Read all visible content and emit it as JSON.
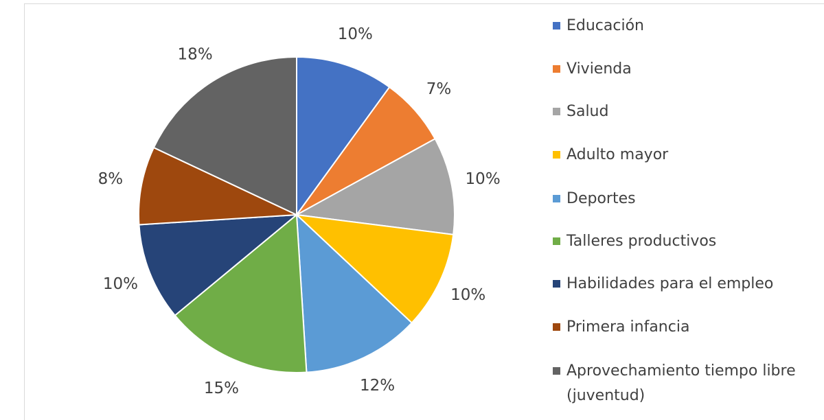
{
  "chart_data": {
    "type": "pie",
    "categories": [
      "Educación",
      "Vivienda",
      "Salud",
      "Adulto mayor",
      "Deportes",
      "Talleres productivos",
      "Habilidades para el empleo",
      "Primera infancia",
      "Aprovechamiento tiempo libre (juventud)"
    ],
    "values": [
      10,
      7,
      10,
      10,
      12,
      15,
      10,
      8,
      18
    ],
    "value_labels": [
      "10%",
      "7%",
      "10%",
      "10%",
      "12%",
      "15%",
      "10%",
      "8%",
      "18%"
    ],
    "colors": [
      "#4472c4",
      "#ed7d31",
      "#a5a5a5",
      "#ffc000",
      "#5b9bd5",
      "#70ad47",
      "#264478",
      "#9e480e",
      "#636363"
    ],
    "legend": "right"
  }
}
